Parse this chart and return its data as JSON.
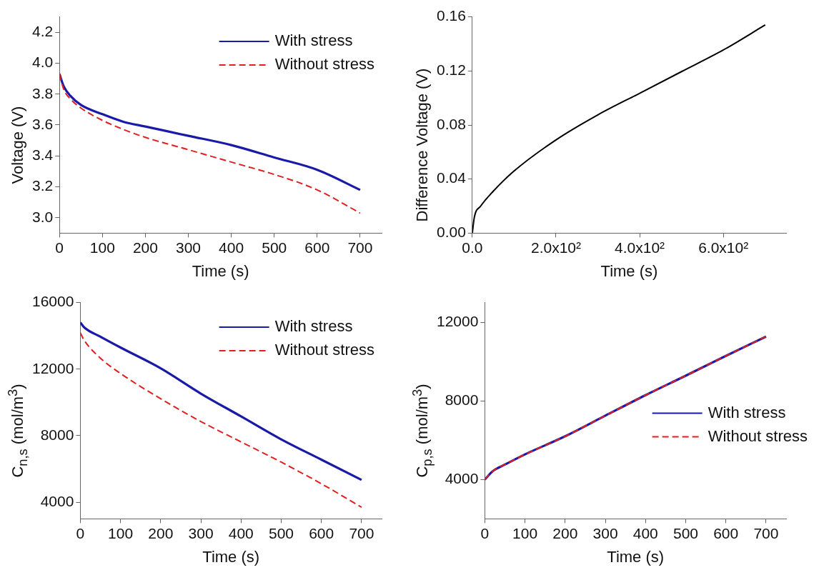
{
  "chart_data": [
    {
      "type": "line",
      "xlabel": "Time (s)",
      "ylabel": "Voltage (V)",
      "x": [
        0,
        10,
        25,
        50,
        100,
        150,
        200,
        300,
        400,
        500,
        600,
        700
      ],
      "xlim": [
        0,
        750
      ],
      "xticks": [
        0,
        100,
        200,
        300,
        400,
        500,
        600,
        700
      ],
      "ylim": [
        2.9,
        4.3
      ],
      "yticks": [
        {
          "value": 3,
          "label": "3.0"
        },
        3.2,
        3.4,
        3.6,
        3.8,
        {
          "value": 4,
          "label": "4.0"
        },
        4.2
      ],
      "grid": false,
      "legend": "top right",
      "marker": "none",
      "series": [
        {
          "name": "With stress",
          "color": "#1a1aa8",
          "line_style": "solid",
          "values": [
            3.93,
            3.85,
            3.79,
            3.73,
            3.67,
            3.62,
            3.59,
            3.53,
            3.47,
            3.39,
            3.31,
            3.18
          ]
        },
        {
          "name": "Without stress",
          "color": "#e02020",
          "line_style": "dashed",
          "values": [
            3.93,
            3.83,
            3.77,
            3.71,
            3.63,
            3.57,
            3.52,
            3.44,
            3.36,
            3.28,
            3.18,
            3.03
          ]
        }
      ]
    },
    {
      "type": "line",
      "xlabel": "Time (s)",
      "ylabel": "Difference Voltage (V)",
      "x": [
        0,
        5,
        20,
        50,
        100,
        200,
        300,
        400,
        500,
        600,
        700
      ],
      "xlim": [
        0,
        750
      ],
      "xticks": [
        {
          "value": 0,
          "label": "0.0"
        },
        {
          "value": 200,
          "label": "2.0x10²"
        },
        {
          "value": 400,
          "label": "4.0x10²"
        },
        {
          "value": 600,
          "label": "6.0x10²"
        }
      ],
      "ylim": [
        0,
        0.16
      ],
      "yticks": [
        {
          "value": 0,
          "label": "0.00"
        },
        {
          "value": 0.04,
          "label": "0.04"
        },
        {
          "value": 0.08,
          "label": "0.08"
        },
        {
          "value": 0.12,
          "label": "0.12"
        },
        {
          "value": 0.16,
          "label": "0.16"
        }
      ],
      "grid": false,
      "legend": false,
      "marker": "none",
      "series": [
        {
          "color": "#000000",
          "line_style": "solid",
          "values": [
            0,
            0.012,
            0.02,
            0.031,
            0.046,
            0.069,
            0.0875,
            0.1035,
            0.1195,
            0.1355,
            0.154
          ]
        }
      ]
    },
    {
      "type": "line",
      "xlabel": "Time (s)",
      "ylabel": "C$_{n,s}$ (mol/m$^{3}$)",
      "x": [
        0,
        10,
        50,
        100,
        200,
        300,
        400,
        500,
        600,
        700
      ],
      "xlim": [
        0,
        750
      ],
      "xticks": [
        0,
        100,
        200,
        300,
        400,
        500,
        600,
        700
      ],
      "ylim": [
        3000,
        16000
      ],
      "yticks": [
        4000,
        8000,
        12000,
        16000
      ],
      "grid": false,
      "legend": "top right",
      "marker": "none",
      "series": [
        {
          "name": "With stress",
          "color": "#1a1aa8",
          "line_style": "solid",
          "values": [
            14800,
            14500,
            13950,
            13300,
            12050,
            10530,
            9160,
            7780,
            6560,
            5340
          ]
        },
        {
          "name": "Without stress",
          "color": "#e02020",
          "line_style": "dashed",
          "values": [
            14180,
            13720,
            12660,
            11740,
            10220,
            8850,
            7630,
            6410,
            5110,
            3700
          ]
        }
      ]
    },
    {
      "type": "line",
      "xlabel": "Time (s)",
      "ylabel": "C$_{p,s}$ (mol/m$^{3}$)",
      "x": [
        0,
        20,
        50,
        100,
        200,
        300,
        400,
        500,
        600,
        700
      ],
      "xlim": [
        0,
        750
      ],
      "xticks": [
        0,
        100,
        200,
        300,
        400,
        500,
        600,
        700
      ],
      "ylim": [
        2000,
        13000
      ],
      "yticks": [
        4000,
        8000,
        12000
      ],
      "grid": false,
      "legend": "right",
      "marker": "none",
      "series": [
        {
          "name": "With stress",
          "color": "#1a1aa8",
          "line_style": "solid",
          "values": [
            4000,
            4430,
            4760,
            5280,
            6200,
            7250,
            8290,
            9280,
            10290,
            11270
          ]
        },
        {
          "name": "Without stress",
          "color": "#e02020",
          "line_style": "dashed",
          "values": [
            4000,
            4430,
            4760,
            5280,
            6200,
            7250,
            8290,
            9280,
            10290,
            11270
          ]
        }
      ]
    }
  ]
}
